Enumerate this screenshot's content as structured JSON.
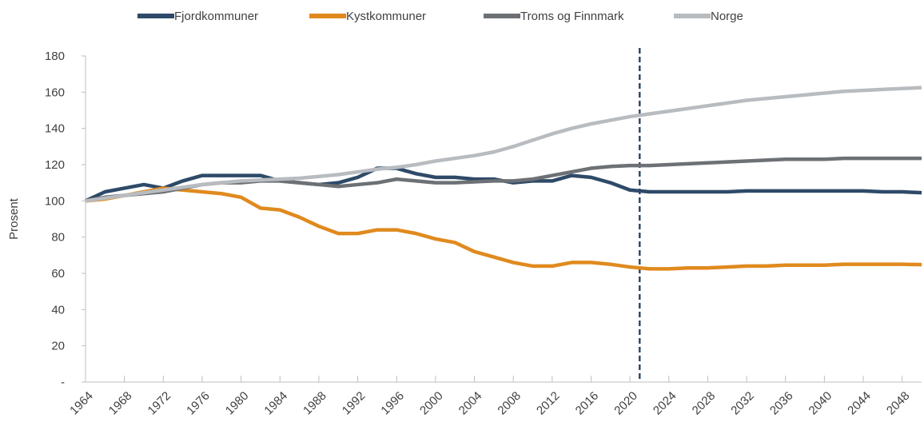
{
  "chart_data": {
    "type": "line",
    "y_label": "Prosent",
    "x": [
      1964,
      1966,
      1968,
      1970,
      1972,
      1974,
      1976,
      1978,
      1980,
      1982,
      1984,
      1986,
      1988,
      1990,
      1992,
      1994,
      1996,
      1998,
      2000,
      2002,
      2004,
      2006,
      2008,
      2010,
      2012,
      2014,
      2016,
      2018,
      2020,
      2022,
      2024,
      2026,
      2028,
      2030,
      2032,
      2034,
      2036,
      2038,
      2040,
      2042,
      2044,
      2046,
      2048,
      2050
    ],
    "series": [
      {
        "name": "Fjordkommuner",
        "color": "#2e4a68",
        "values": [
          100,
          105,
          107,
          109,
          107,
          111,
          114,
          114,
          114,
          114,
          111,
          110,
          109,
          110,
          113,
          118,
          118,
          115,
          113,
          113,
          112,
          112,
          110,
          111,
          111,
          114,
          113,
          110,
          106,
          105,
          105,
          105,
          105,
          105,
          105.5,
          105.5,
          105.5,
          105.5,
          105.5,
          105.5,
          105.5,
          105,
          105,
          104.5
        ]
      },
      {
        "name": "Kystkommuner",
        "color": "#e08a1e",
        "values": [
          100,
          101,
          103,
          105,
          107,
          106,
          105,
          104,
          102,
          96,
          95,
          91,
          86,
          82,
          82,
          84,
          84,
          82,
          79,
          77,
          72,
          69,
          66,
          64,
          64,
          66,
          66,
          65,
          63.5,
          62.5,
          62.5,
          63,
          63,
          63.5,
          64,
          64,
          64.5,
          64.5,
          64.5,
          65,
          65,
          65,
          65,
          64.8
        ]
      },
      {
        "name": "Troms og Finnmark",
        "color": "#6d7175",
        "values": [
          100,
          102,
          103,
          104,
          105,
          107,
          109,
          110,
          110,
          111,
          111,
          110,
          109,
          108,
          109,
          110,
          112,
          111,
          110,
          110,
          110.5,
          111,
          111,
          112,
          114,
          116,
          118,
          119,
          119.5,
          119.5,
          120,
          120.5,
          121,
          121.5,
          122,
          122.5,
          123,
          123,
          123,
          123.5,
          123.5,
          123.5,
          123.5,
          123.5
        ]
      },
      {
        "name": "Norge",
        "color": "#b8bcc0",
        "values": [
          100,
          101.5,
          103,
          104.5,
          106,
          107.5,
          109,
          110,
          111,
          111.5,
          112,
          112.5,
          113.5,
          114.5,
          116,
          117.5,
          118.5,
          120,
          122,
          123.5,
          125,
          127,
          130,
          133.5,
          137,
          140,
          142.5,
          144.5,
          146.5,
          148,
          149.5,
          151,
          152.5,
          154,
          155.5,
          156.5,
          157.5,
          158.5,
          159.5,
          160.5,
          161,
          161.5,
          162,
          162.5
        ]
      }
    ],
    "xlim": [
      1964,
      2050
    ],
    "xticks": [
      1964,
      1968,
      1972,
      1976,
      1980,
      1984,
      1988,
      1992,
      1996,
      2000,
      2004,
      2008,
      2012,
      2016,
      2020,
      2024,
      2028,
      2032,
      2036,
      2040,
      2044,
      2048
    ],
    "ylim": [
      0,
      180
    ],
    "yticks": [
      {
        "value": 0,
        "label": "-"
      },
      20,
      40,
      60,
      80,
      100,
      120,
      140,
      160,
      180
    ],
    "vline": 2021,
    "vline_color": "#2e4a68",
    "legend": "top",
    "grid": false
  }
}
